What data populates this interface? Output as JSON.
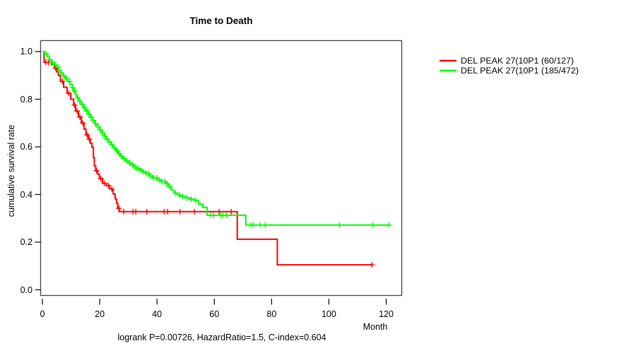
{
  "title": "Time to Death",
  "footer": "logrank P=0.00726, HazardRatio=1.5, C-index=0.604",
  "axes": {
    "x_label": "Month",
    "y_label": "cumulative survival rate",
    "x_tick_labels": [
      "0",
      "20",
      "40",
      "60",
      "80",
      "100",
      "120"
    ],
    "x_tick_values": [
      0,
      20,
      40,
      60,
      80,
      100,
      120
    ],
    "y_tick_labels": [
      "1.0",
      "0.8",
      "0.6",
      "0.4",
      "0.2",
      "0.0"
    ],
    "y_tick_values": [
      1.0,
      0.8,
      0.6,
      0.4,
      0.2,
      0.0
    ]
  },
  "legend": {
    "items": [
      {
        "label": "DEL PEAK 27(10P1 (60/127)",
        "color": "#ff0000"
      },
      {
        "label": "DEL PEAK 27(10P1 (185/472)",
        "color": "#00ff00"
      }
    ]
  },
  "chart_data": {
    "type": "line",
    "subtype": "kaplan-meier-step",
    "title": "Time to Death",
    "xlabel": "Month",
    "ylabel": "cumulative survival rate",
    "xlim": [
      0,
      126
    ],
    "ylim": [
      0.0,
      1.0
    ],
    "grid": false,
    "legend_position": "right-outside",
    "annotation": "logrank P=0.00726, HazardRatio=1.5, C-index=0.604",
    "series": [
      {
        "name": "DEL PEAK 27(10P1 (60/127)",
        "color": "#ff0000",
        "steps": [
          [
            0,
            1.0
          ],
          [
            0.6,
            0.955
          ],
          [
            3.2,
            0.945
          ],
          [
            4.2,
            0.93
          ],
          [
            5.0,
            0.915
          ],
          [
            5.6,
            0.9
          ],
          [
            6.3,
            0.875
          ],
          [
            7.4,
            0.85
          ],
          [
            8.6,
            0.825
          ],
          [
            9.9,
            0.8
          ],
          [
            10.9,
            0.775
          ],
          [
            11.6,
            0.75
          ],
          [
            12.6,
            0.725
          ],
          [
            13.6,
            0.7
          ],
          [
            14.5,
            0.675
          ],
          [
            15.2,
            0.65
          ],
          [
            16.0,
            0.632
          ],
          [
            16.7,
            0.615
          ],
          [
            17.3,
            0.598
          ],
          [
            17.8,
            0.555
          ],
          [
            18.1,
            0.52
          ],
          [
            18.6,
            0.5
          ],
          [
            19.3,
            0.485
          ],
          [
            19.9,
            0.467
          ],
          [
            21.0,
            0.447
          ],
          [
            22.2,
            0.438
          ],
          [
            23.5,
            0.423
          ],
          [
            24.7,
            0.402
          ],
          [
            25.4,
            0.381
          ],
          [
            25.9,
            0.363
          ],
          [
            26.3,
            0.342
          ],
          [
            26.8,
            0.328
          ],
          [
            68.0,
            0.212
          ],
          [
            82.0,
            0.105
          ]
        ],
        "end_month": 115,
        "censor_months": [
          1.2,
          2.2,
          4.6,
          7.0,
          9.2,
          11.2,
          12.1,
          13.1,
          14.1,
          15.6,
          16.4,
          18.9,
          20.4,
          21.6,
          23.0,
          24.2,
          26.7,
          28.4,
          31.6,
          32.6,
          36.4,
          42.5,
          43.7,
          48.0,
          53.0,
          61.7,
          65.9,
          115
        ]
      },
      {
        "name": "DEL PEAK 27(10P1 (185/472)",
        "color": "#00ff00",
        "steps": [
          [
            0,
            1.0
          ],
          [
            0.8,
            0.99
          ],
          [
            1.6,
            0.978
          ],
          [
            2.4,
            0.966
          ],
          [
            3.2,
            0.954
          ],
          [
            4.0,
            0.944
          ],
          [
            4.8,
            0.934
          ],
          [
            5.6,
            0.922
          ],
          [
            6.4,
            0.91
          ],
          [
            7.2,
            0.898
          ],
          [
            8.0,
            0.886
          ],
          [
            8.8,
            0.874
          ],
          [
            9.6,
            0.862
          ],
          [
            10.4,
            0.848
          ],
          [
            11.0,
            0.834
          ],
          [
            11.5,
            0.82
          ],
          [
            12.0,
            0.806
          ],
          [
            12.8,
            0.792
          ],
          [
            13.6,
            0.778
          ],
          [
            14.4,
            0.764
          ],
          [
            15.2,
            0.75
          ],
          [
            16.0,
            0.737
          ],
          [
            16.8,
            0.724
          ],
          [
            17.6,
            0.71
          ],
          [
            18.4,
            0.697
          ],
          [
            19.2,
            0.684
          ],
          [
            20.0,
            0.671
          ],
          [
            20.8,
            0.658
          ],
          [
            21.6,
            0.645
          ],
          [
            22.4,
            0.632
          ],
          [
            23.2,
            0.62
          ],
          [
            24.0,
            0.608
          ],
          [
            24.8,
            0.596
          ],
          [
            25.6,
            0.584
          ],
          [
            26.4,
            0.572
          ],
          [
            27.2,
            0.561
          ],
          [
            28.0,
            0.551
          ],
          [
            29.0,
            0.541
          ],
          [
            30.0,
            0.532
          ],
          [
            31.0,
            0.524
          ],
          [
            32.0,
            0.516
          ],
          [
            33.0,
            0.508
          ],
          [
            34.0,
            0.501
          ],
          [
            35.0,
            0.495
          ],
          [
            36.0,
            0.489
          ],
          [
            37.2,
            0.478
          ],
          [
            38.5,
            0.47
          ],
          [
            40.0,
            0.462
          ],
          [
            41.5,
            0.454
          ],
          [
            43.0,
            0.445
          ],
          [
            44.0,
            0.432
          ],
          [
            45.0,
            0.418
          ],
          [
            46.0,
            0.406
          ],
          [
            47.2,
            0.398
          ],
          [
            48.5,
            0.392
          ],
          [
            50.0,
            0.386
          ],
          [
            51.5,
            0.38
          ],
          [
            53.0,
            0.375
          ],
          [
            54.5,
            0.36
          ],
          [
            56.0,
            0.346
          ],
          [
            57.5,
            0.313
          ],
          [
            71.0,
            0.272
          ]
        ],
        "end_month": 121,
        "censor_months": [
          1.5,
          2.5,
          3.5,
          4.5,
          5.5,
          6.5,
          7.5,
          8.5,
          9.5,
          10.5,
          11.2,
          12.3,
          13.0,
          13.8,
          14.7,
          15.5,
          16.3,
          17.0,
          17.8,
          18.6,
          19.4,
          20.2,
          21.0,
          21.8,
          22.6,
          23.4,
          24.3,
          25.1,
          26.0,
          26.8,
          27.6,
          28.5,
          29.5,
          30.5,
          31.5,
          32.3,
          33.0,
          33.7,
          34.5,
          35.3,
          36.2,
          37.0,
          37.8,
          38.8,
          39.8,
          40.8,
          41.8,
          42.8,
          43.5,
          44.5,
          46.5,
          47.8,
          49.0,
          50.5,
          52.0,
          53.5,
          58.8,
          59.8,
          62.2,
          63.0,
          64.2,
          72.8,
          73.6,
          76.0,
          77.8,
          103.7,
          115.3,
          121
        ]
      }
    ]
  }
}
